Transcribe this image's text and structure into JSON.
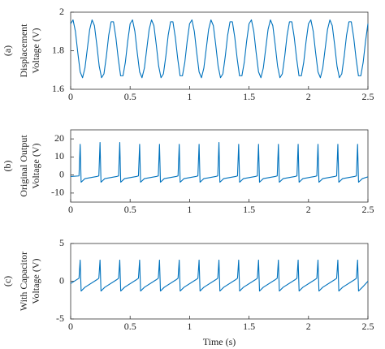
{
  "chart_data": [
    {
      "type": "line",
      "panel_label": "(a)",
      "ylabel": [
        "Displacement",
        "Voltage (V)"
      ],
      "color": "#0072bd",
      "xlim": [
        0,
        2.5
      ],
      "xticks": [
        0,
        0.5,
        1,
        1.5,
        2,
        2.5
      ],
      "ylim": [
        1.6,
        2
      ],
      "yticks": [
        1.6,
        1.8,
        2
      ],
      "x": [
        0,
        0.02,
        0.04,
        0.06,
        0.08,
        0.1,
        0.12,
        0.14,
        0.16,
        0.18,
        0.2,
        0.22,
        0.24,
        0.26,
        0.28,
        0.3,
        0.32,
        0.34,
        0.36,
        0.38,
        0.4,
        0.42,
        0.44,
        0.46,
        0.48,
        0.5,
        0.52,
        0.54,
        0.56,
        0.58,
        0.6,
        0.62,
        0.64,
        0.66,
        0.68,
        0.7,
        0.72,
        0.74,
        0.76,
        0.78,
        0.8,
        0.82,
        0.84,
        0.86,
        0.88,
        0.9,
        0.92,
        0.94,
        0.96,
        0.98,
        1,
        1.02,
        1.04,
        1.06,
        1.08,
        1.1,
        1.12,
        1.14,
        1.16,
        1.18,
        1.2,
        1.22,
        1.24,
        1.26,
        1.28,
        1.3,
        1.32,
        1.34,
        1.36,
        1.38,
        1.4,
        1.42,
        1.44,
        1.46,
        1.48,
        1.5,
        1.52,
        1.54,
        1.56,
        1.58,
        1.6,
        1.62,
        1.64,
        1.66,
        1.68,
        1.7,
        1.72,
        1.74,
        1.76,
        1.78,
        1.8,
        1.82,
        1.84,
        1.86,
        1.88,
        1.9,
        1.92,
        1.94,
        1.96,
        1.98,
        2,
        2.02,
        2.04,
        2.06,
        2.08,
        2.1,
        2.12,
        2.14,
        2.16,
        2.18,
        2.2,
        2.22,
        2.24,
        2.26,
        2.28,
        2.3,
        2.32,
        2.34,
        2.36,
        2.38,
        2.4,
        2.42,
        2.44,
        2.46,
        2.48,
        2.5
      ],
      "values": [
        1.94,
        1.96,
        1.9,
        1.79,
        1.69,
        1.66,
        1.71,
        1.81,
        1.91,
        1.96,
        1.93,
        1.83,
        1.72,
        1.66,
        1.68,
        1.77,
        1.88,
        1.95,
        1.95,
        1.87,
        1.76,
        1.67,
        1.67,
        1.74,
        1.85,
        1.94,
        1.96,
        1.9,
        1.79,
        1.69,
        1.66,
        1.71,
        1.81,
        1.91,
        1.96,
        1.93,
        1.83,
        1.72,
        1.66,
        1.68,
        1.77,
        1.88,
        1.95,
        1.95,
        1.87,
        1.76,
        1.67,
        1.67,
        1.74,
        1.85,
        1.94,
        1.96,
        1.9,
        1.79,
        1.69,
        1.66,
        1.71,
        1.81,
        1.91,
        1.96,
        1.93,
        1.83,
        1.72,
        1.66,
        1.68,
        1.77,
        1.88,
        1.95,
        1.95,
        1.87,
        1.76,
        1.67,
        1.67,
        1.74,
        1.85,
        1.94,
        1.96,
        1.9,
        1.79,
        1.69,
        1.66,
        1.71,
        1.81,
        1.91,
        1.96,
        1.93,
        1.83,
        1.72,
        1.66,
        1.68,
        1.77,
        1.88,
        1.95,
        1.95,
        1.87,
        1.76,
        1.67,
        1.67,
        1.74,
        1.85,
        1.94,
        1.96,
        1.9,
        1.79,
        1.69,
        1.66,
        1.71,
        1.81,
        1.91,
        1.96,
        1.93,
        1.83,
        1.72,
        1.66,
        1.68,
        1.77,
        1.88,
        1.95,
        1.95,
        1.87,
        1.76,
        1.67,
        1.67,
        1.74,
        1.85,
        1.94
      ]
    },
    {
      "type": "line",
      "panel_label": "(b)",
      "ylabel": [
        "Original Output",
        "Voltage (V)"
      ],
      "color": "#0072bd",
      "xlim": [
        0,
        2.5
      ],
      "xticks": [
        0,
        0.5,
        1,
        1.5,
        2,
        2.5
      ],
      "ylim": [
        -15,
        25
      ],
      "yticks": [
        -10,
        0,
        10,
        20
      ],
      "x": [
        0,
        0.07,
        0.08,
        0.088,
        0.12,
        0.22,
        0.237,
        0.247,
        0.255,
        0.287,
        0.387,
        0.403,
        0.413,
        0.421,
        0.453,
        0.553,
        0.57,
        0.58,
        0.588,
        0.62,
        0.72,
        0.737,
        0.747,
        0.755,
        0.787,
        0.887,
        0.903,
        0.913,
        0.921,
        0.953,
        1.053,
        1.07,
        1.08,
        1.088,
        1.12,
        1.22,
        1.237,
        1.247,
        1.255,
        1.287,
        1.387,
        1.403,
        1.413,
        1.421,
        1.453,
        1.553,
        1.57,
        1.58,
        1.588,
        1.62,
        1.72,
        1.737,
        1.747,
        1.755,
        1.787,
        1.887,
        1.903,
        1.913,
        1.921,
        1.953,
        2.053,
        2.07,
        2.08,
        2.088,
        2.12,
        2.22,
        2.237,
        2.247,
        2.255,
        2.287,
        2.387,
        2.403,
        2.413,
        2.421,
        2.453,
        2.5
      ],
      "values": [
        -0.8,
        -0.5,
        17,
        -4,
        -2,
        -0.8,
        -0.5,
        18,
        -4,
        -2,
        -0.8,
        -0.5,
        18,
        -4,
        -2,
        -0.8,
        -0.5,
        17,
        -4,
        -2,
        -0.8,
        -0.5,
        17,
        -4,
        -2,
        -0.8,
        -0.5,
        17,
        -4,
        -2,
        -0.8,
        -0.5,
        17,
        -4,
        -2,
        -0.8,
        -0.5,
        18,
        -4,
        -2,
        -0.8,
        -0.5,
        17,
        -4,
        -2,
        -0.8,
        -0.5,
        17,
        -4,
        -2,
        -0.8,
        -0.5,
        17,
        -4,
        -2,
        -0.8,
        -0.5,
        17,
        -4,
        -2,
        -0.8,
        -0.5,
        17,
        -4,
        -2,
        -0.8,
        -0.5,
        17,
        -4,
        -2,
        -0.8,
        -0.5,
        17,
        -4,
        -2,
        -1
      ]
    },
    {
      "type": "line",
      "panel_label": "(c)",
      "ylabel": [
        "With Capacitor",
        "Voltage (V)"
      ],
      "xlabel": "Time (s)",
      "color": "#0072bd",
      "xlim": [
        0,
        2.5
      ],
      "xticks": [
        0,
        0.5,
        1,
        1.5,
        2,
        2.5
      ],
      "ylim": [
        -5,
        5
      ],
      "yticks": [
        -5,
        0,
        5
      ],
      "x": [
        0,
        0.07,
        0.08,
        0.088,
        0.12,
        0.22,
        0.237,
        0.247,
        0.255,
        0.287,
        0.387,
        0.403,
        0.413,
        0.421,
        0.453,
        0.553,
        0.57,
        0.58,
        0.588,
        0.62,
        0.72,
        0.737,
        0.747,
        0.755,
        0.787,
        0.887,
        0.903,
        0.913,
        0.921,
        0.953,
        1.053,
        1.07,
        1.08,
        1.088,
        1.12,
        1.22,
        1.237,
        1.247,
        1.255,
        1.287,
        1.387,
        1.403,
        1.413,
        1.421,
        1.453,
        1.553,
        1.57,
        1.58,
        1.588,
        1.62,
        1.72,
        1.737,
        1.747,
        1.755,
        1.787,
        1.887,
        1.903,
        1.913,
        1.921,
        1.953,
        2.053,
        2.07,
        2.08,
        2.088,
        2.12,
        2.22,
        2.237,
        2.247,
        2.255,
        2.287,
        2.387,
        2.403,
        2.413,
        2.421,
        2.453,
        2.5
      ],
      "values": [
        -0.3,
        0.4,
        2.8,
        -1.3,
        -0.8,
        0.2,
        0.4,
        2.8,
        -1.3,
        -0.8,
        0.2,
        0.4,
        2.8,
        -1.3,
        -0.8,
        0.2,
        0.4,
        2.8,
        -1.3,
        -0.8,
        0.2,
        0.4,
        2.8,
        -1.3,
        -0.8,
        0.2,
        0.4,
        2.8,
        -1.3,
        -0.8,
        0.2,
        0.4,
        2.8,
        -1.3,
        -0.8,
        0.2,
        0.4,
        2.8,
        -1.3,
        -0.8,
        0.2,
        0.4,
        2.8,
        -1.3,
        -0.8,
        0.2,
        0.4,
        2.8,
        -1.3,
        -0.8,
        0.2,
        0.4,
        2.8,
        -1.3,
        -0.8,
        0.2,
        0.4,
        2.8,
        -1.3,
        -0.8,
        0.2,
        0.4,
        2.8,
        -1.3,
        -0.8,
        0.2,
        0.4,
        2.8,
        -1.3,
        -0.8,
        0.2,
        0.4,
        2.8,
        -1.3,
        -0.8,
        0
      ]
    }
  ]
}
